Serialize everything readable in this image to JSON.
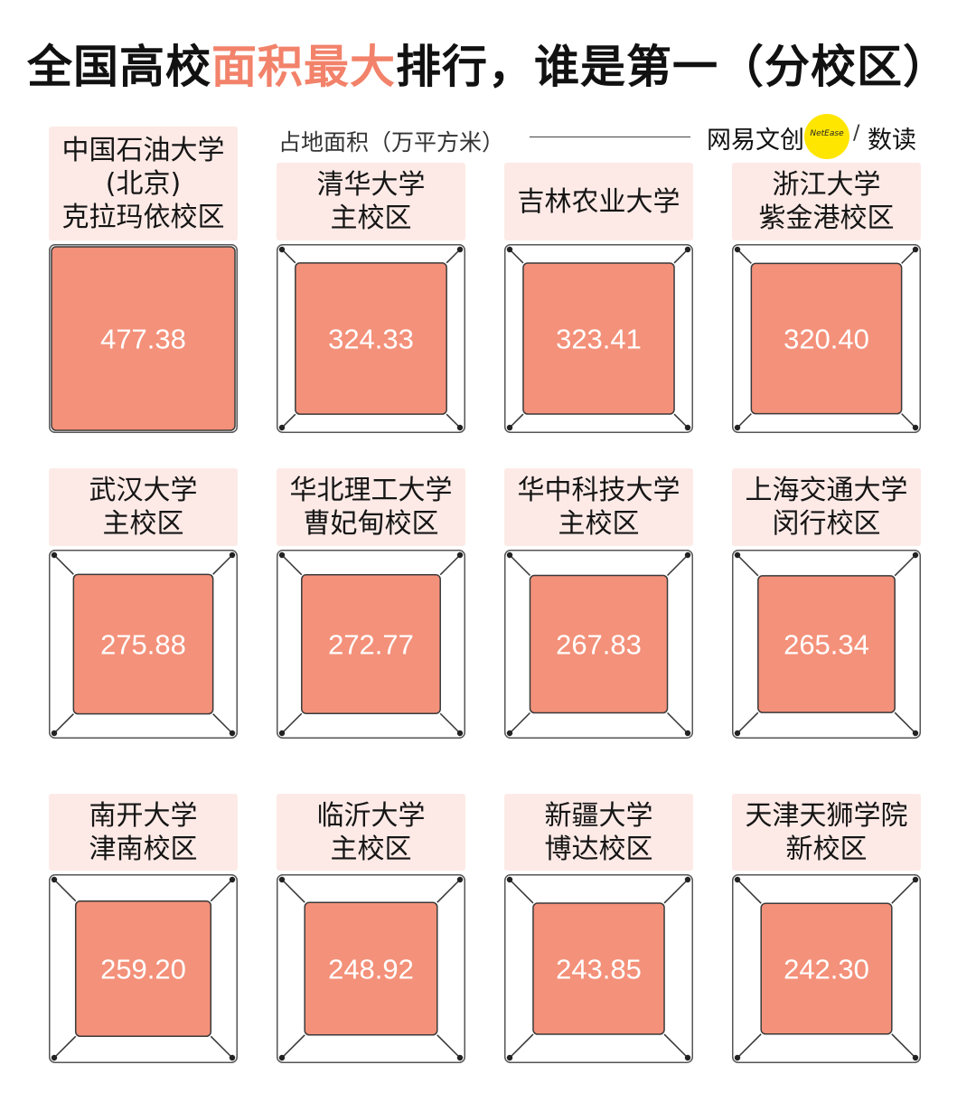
{
  "title": {
    "pre": "全国高校",
    "highlight": "面积最大",
    "post": "排行，谁是第一（分校区）"
  },
  "subtitle": "占地面积（万平方米）",
  "logo": {
    "brand": "网易文创",
    "badge": "NetEase",
    "slash": "/",
    "product": "数读"
  },
  "colors": {
    "accent": "#f2826a",
    "fill": "#f4917a",
    "label_bg": "#fdeae6"
  },
  "chart_data": {
    "type": "table",
    "title": "全国高校面积最大排行，谁是第一（分校区）",
    "unit": "占地面积（万平方米）",
    "categories": [
      "中国石油大学(北京)克拉玛依校区",
      "清华大学主校区",
      "吉林农业大学",
      "浙江大学紫金港校区",
      "武汉大学主校区",
      "华北理工大学曹妃甸校区",
      "华中科技大学主校区",
      "上海交通大学闵行校区",
      "南开大学津南校区",
      "临沂大学主校区",
      "新疆大学博达校区",
      "天津天狮学院新校区"
    ],
    "values": [
      477.38,
      324.33,
      323.41,
      320.4,
      275.88,
      272.77,
      267.83,
      265.34,
      259.2,
      248.92,
      243.85,
      242.3
    ],
    "items": [
      {
        "lines": [
          "中国石油大学",
          "(北京)",
          "克拉玛依校区"
        ],
        "value": 477.38,
        "value_label": "477.38"
      },
      {
        "lines": [
          "清华大学",
          "主校区"
        ],
        "value": 324.33,
        "value_label": "324.33"
      },
      {
        "lines": [
          "吉林农业大学"
        ],
        "value": 323.41,
        "value_label": "323.41"
      },
      {
        "lines": [
          "浙江大学",
          "紫金港校区"
        ],
        "value": 320.4,
        "value_label": "320.40"
      },
      {
        "lines": [
          "武汉大学",
          "主校区"
        ],
        "value": 275.88,
        "value_label": "275.88"
      },
      {
        "lines": [
          "华北理工大学",
          "曹妃甸校区"
        ],
        "value": 272.77,
        "value_label": "272.77"
      },
      {
        "lines": [
          "华中科技大学",
          "主校区"
        ],
        "value": 267.83,
        "value_label": "267.83"
      },
      {
        "lines": [
          "上海交通大学",
          "闵行校区"
        ],
        "value": 265.34,
        "value_label": "265.34"
      },
      {
        "lines": [
          "南开大学",
          "津南校区"
        ],
        "value": 259.2,
        "value_label": "259.20"
      },
      {
        "lines": [
          "临沂大学",
          "主校区"
        ],
        "value": 248.92,
        "value_label": "248.92"
      },
      {
        "lines": [
          "新疆大学",
          "博达校区"
        ],
        "value": 243.85,
        "value_label": "243.85"
      },
      {
        "lines": [
          "天津天狮学院",
          "新校区"
        ],
        "value": 242.3,
        "value_label": "242.30"
      }
    ]
  }
}
